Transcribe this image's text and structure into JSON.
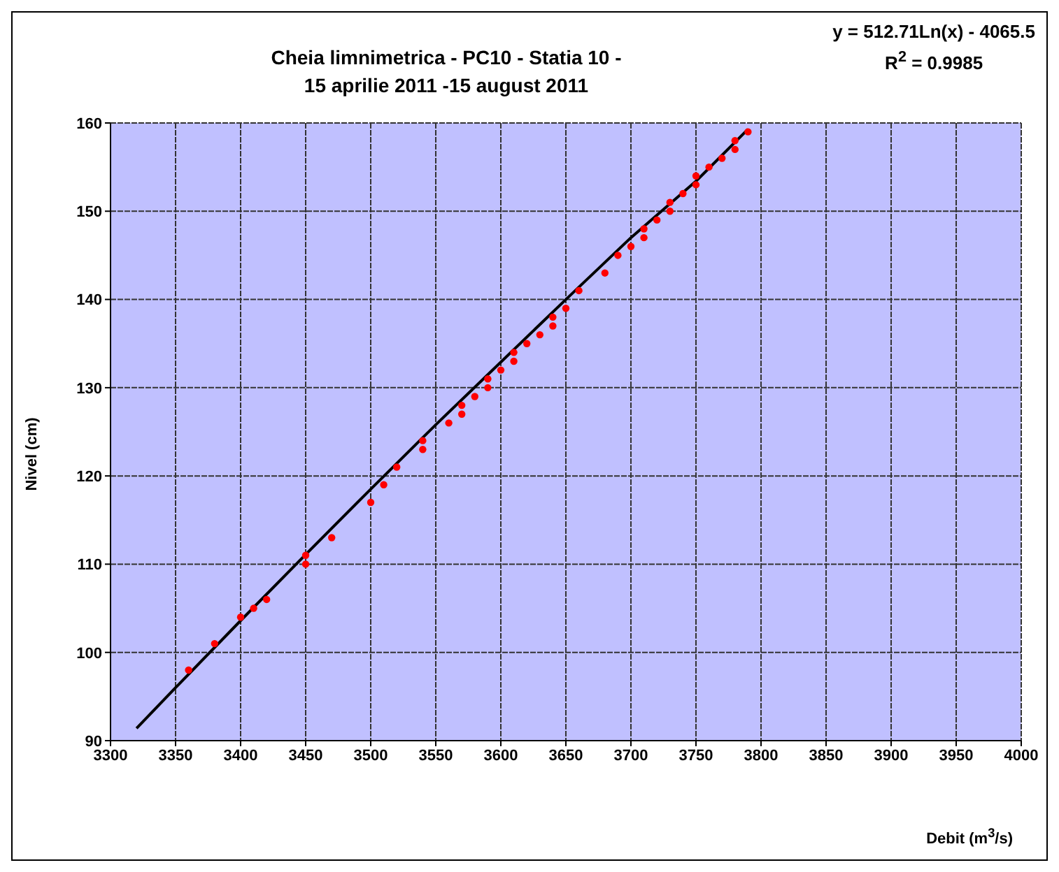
{
  "chart_data": {
    "type": "scatter",
    "title": "Cheia limnimetrica - PC10 - Statia 10 -\n15 aprilie 2011 -15 august 2011",
    "xlabel": "Debit (m$^{3}$/s)",
    "ylabel": "Nivel (cm)",
    "annotations": [
      "y = 512.71Ln(x) - 4065.5",
      "R$^{2}$ = 0.9985"
    ],
    "xlim": [
      3300,
      4000
    ],
    "xticks": [
      3300,
      3350,
      3400,
      3450,
      3500,
      3550,
      3600,
      3650,
      3700,
      3750,
      3800,
      3850,
      3900,
      3950,
      4000
    ],
    "ylim": [
      90,
      160
    ],
    "yticks": [
      90,
      100,
      110,
      120,
      130,
      140,
      150,
      160
    ],
    "grid": true,
    "series": [
      {
        "type": "scatter",
        "color": "#ff0000",
        "marker": "circle",
        "x": [
          3360,
          3380,
          3400,
          3410,
          3420,
          3450,
          3450,
          3470,
          3500,
          3510,
          3520,
          3540,
          3540,
          3560,
          3570,
          3570,
          3580,
          3590,
          3590,
          3600,
          3610,
          3610,
          3620,
          3630,
          3640,
          3640,
          3650,
          3660,
          3680,
          3690,
          3700,
          3710,
          3710,
          3720,
          3730,
          3730,
          3740,
          3750,
          3750,
          3760,
          3770,
          3780,
          3780,
          3790
        ],
        "values": [
          98,
          101,
          104,
          105,
          106,
          110,
          111,
          113,
          117,
          119,
          121,
          123,
          124,
          126,
          127,
          128,
          129,
          130,
          131,
          132,
          133,
          134,
          135,
          136,
          137,
          138,
          139,
          141,
          143,
          145,
          146,
          147,
          148,
          149,
          150,
          151,
          152,
          153,
          154,
          155,
          156,
          157,
          158,
          159
        ]
      },
      {
        "type": "line",
        "color": "#000000",
        "marker": "none",
        "line_style": "solid",
        "x": [
          3320,
          3350,
          3400,
          3450,
          3500,
          3550,
          3600,
          3650,
          3700,
          3750,
          3790
        ],
        "values": [
          91.4,
          96.0,
          103.6,
          111.1,
          118.5,
          125.8,
          132.9,
          140.0,
          147.0,
          153.4,
          159.3
        ]
      }
    ]
  }
}
